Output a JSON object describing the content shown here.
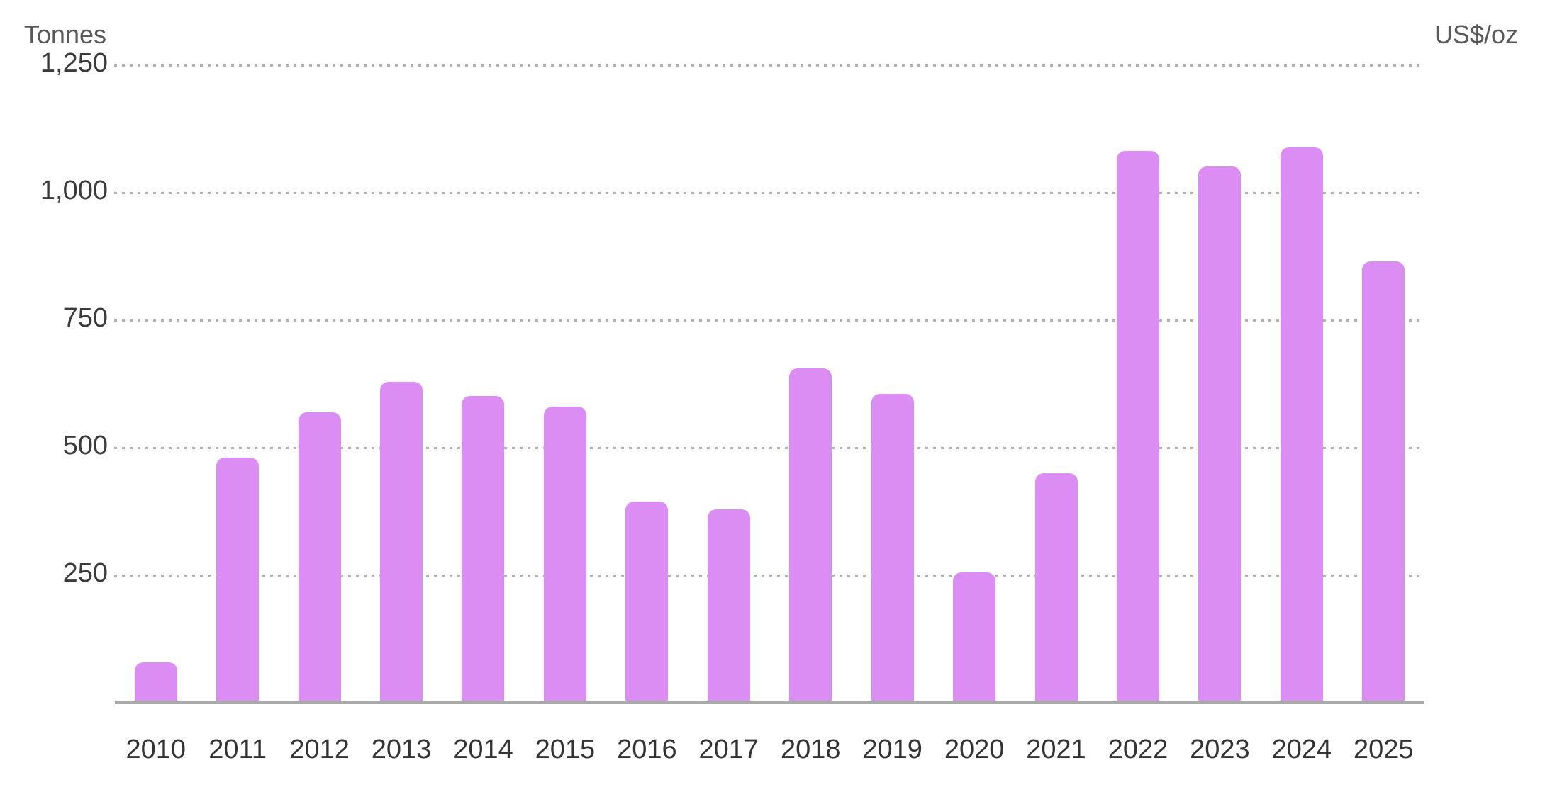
{
  "chart": {
    "left_axis_title": "Tonnes",
    "right_axis_title": "US$/oz"
  },
  "chart_data": {
    "type": "bar",
    "title": "",
    "categories": [
      "2010",
      "2011",
      "2012",
      "2013",
      "2014",
      "2015",
      "2016",
      "2017",
      "2018",
      "2019",
      "2020",
      "2021",
      "2022",
      "2023",
      "2024",
      "2025"
    ],
    "values": [
      79,
      481,
      569,
      629,
      601,
      580,
      395,
      379,
      656,
      605,
      255,
      450,
      1082,
      1051,
      1089,
      865
    ],
    "series": [
      {
        "name": "Tonnes",
        "values": [
          79,
          481,
          569,
          629,
          601,
          580,
          395,
          379,
          656,
          605,
          255,
          450,
          1082,
          1051,
          1089,
          865
        ]
      }
    ],
    "xlabel": "",
    "ylabel_left": "Tonnes",
    "ylabel_right": "US$/oz",
    "ylim": [
      0,
      1250
    ],
    "yticks": [
      {
        "value": 1250,
        "label": "1,250"
      },
      {
        "value": 1000,
        "label": "1,000"
      },
      {
        "value": 750,
        "label": "750"
      },
      {
        "value": 500,
        "label": "500"
      },
      {
        "value": 250,
        "label": "250"
      }
    ],
    "grid": "horizontal-dotted",
    "legend": "none",
    "bar_color": "#db8df3",
    "axis_line_color": "#a9a9a9",
    "gridline_color": "#b1b1b1",
    "tick_text_color": "#3b3b3b",
    "axis_title_color": "#595959"
  }
}
